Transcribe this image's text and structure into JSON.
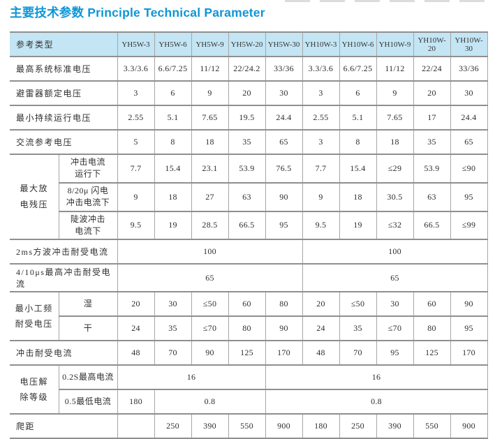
{
  "page": {
    "title": "主要技术参数 Principle Technical Parameter"
  },
  "colors": {
    "title_accent": "#0e96d6",
    "header_background": "#c3e5f4",
    "grid_line": "#8f8f8f"
  },
  "table": {
    "rows": [
      {
        "header": true,
        "cells": [
          {
            "t": "参考类型",
            "c": 2,
            "cls": "label"
          },
          {
            "t": "YH5W-3"
          },
          {
            "t": "YH5W-6"
          },
          {
            "t": "YH5W-9"
          },
          {
            "t": "YH5W-20"
          },
          {
            "t": "YH5W-30"
          },
          {
            "t": "YH10W-3"
          },
          {
            "t": "YH10W-6"
          },
          {
            "t": "YH10W-9"
          },
          {
            "t": "YH10W-20"
          },
          {
            "t": "YH10W-30"
          }
        ]
      },
      {
        "cells": [
          {
            "t": "最高系统标准电压",
            "c": 2,
            "cls": "label"
          },
          {
            "t": "3.3/3.6"
          },
          {
            "t": "6.6/7.25"
          },
          {
            "t": "11/12"
          },
          {
            "t": "22/24.2"
          },
          {
            "t": "33/36"
          },
          {
            "t": "3.3/3.6"
          },
          {
            "t": "6.6/7.25"
          },
          {
            "t": "11/12"
          },
          {
            "t": "22/24"
          },
          {
            "t": "33/36"
          }
        ]
      },
      {
        "cells": [
          {
            "t": "避雷器额定电压",
            "c": 2,
            "cls": "label"
          },
          {
            "t": "3"
          },
          {
            "t": "6"
          },
          {
            "t": "9"
          },
          {
            "t": "20"
          },
          {
            "t": "30"
          },
          {
            "t": "3"
          },
          {
            "t": "6"
          },
          {
            "t": "9"
          },
          {
            "t": "20"
          },
          {
            "t": "30"
          }
        ]
      },
      {
        "cells": [
          {
            "t": "最小持续运行电压",
            "c": 2,
            "cls": "label"
          },
          {
            "t": "2.55"
          },
          {
            "t": "5.1"
          },
          {
            "t": "7.65"
          },
          {
            "t": "19.5"
          },
          {
            "t": "24.4"
          },
          {
            "t": "2.55"
          },
          {
            "t": "5.1"
          },
          {
            "t": "7.65"
          },
          {
            "t": "17"
          },
          {
            "t": "24.4"
          }
        ]
      },
      {
        "cells": [
          {
            "t": "交流参考电压",
            "c": 2,
            "cls": "label"
          },
          {
            "t": "5"
          },
          {
            "t": "8"
          },
          {
            "t": "18"
          },
          {
            "t": "35"
          },
          {
            "t": "65"
          },
          {
            "t": "3"
          },
          {
            "t": "8"
          },
          {
            "t": "18"
          },
          {
            "t": "35"
          },
          {
            "t": "65"
          }
        ]
      },
      {
        "cells": [
          {
            "t": "最大放\n电残压",
            "r": 3,
            "cls": "group"
          },
          {
            "t": "冲击电流\n运行下",
            "cls": "sub"
          },
          {
            "t": "7.7"
          },
          {
            "t": "15.4"
          },
          {
            "t": "23.1"
          },
          {
            "t": "53.9"
          },
          {
            "t": "76.5"
          },
          {
            "t": "7.7"
          },
          {
            "t": "15.4"
          },
          {
            "t": "≤29"
          },
          {
            "t": "53.9"
          },
          {
            "t": "≤90"
          }
        ]
      },
      {
        "cells": [
          {
            "t": "8/20μ 闪电\n冲击电流下",
            "cls": "sub"
          },
          {
            "t": "9"
          },
          {
            "t": "18"
          },
          {
            "t": "27"
          },
          {
            "t": "63"
          },
          {
            "t": "90"
          },
          {
            "t": "9"
          },
          {
            "t": "18"
          },
          {
            "t": "30.5"
          },
          {
            "t": "63"
          },
          {
            "t": "95"
          }
        ]
      },
      {
        "cells": [
          {
            "t": "陡波冲击\n电流下",
            "cls": "sub"
          },
          {
            "t": "9.5"
          },
          {
            "t": "19"
          },
          {
            "t": "28.5"
          },
          {
            "t": "66.5"
          },
          {
            "t": "95"
          },
          {
            "t": "9.5"
          },
          {
            "t": "19"
          },
          {
            "t": "≤32"
          },
          {
            "t": "66.5"
          },
          {
            "t": "≤99"
          }
        ]
      },
      {
        "cells": [
          {
            "t": "2ms方波冲击耐受电流",
            "c": 2,
            "cls": "label"
          },
          {
            "t": "100",
            "c": 5
          },
          {
            "t": "100",
            "c": 5
          }
        ]
      },
      {
        "cells": [
          {
            "t": "4/10μs最高冲击耐受电流",
            "c": 2,
            "cls": "label"
          },
          {
            "t": "65",
            "c": 5
          },
          {
            "t": "65",
            "c": 5
          }
        ]
      },
      {
        "cells": [
          {
            "t": "最小工频\n耐受电压",
            "r": 2,
            "cls": "group"
          },
          {
            "t": "湿",
            "cls": "sub"
          },
          {
            "t": "20"
          },
          {
            "t": "30"
          },
          {
            "t": "≤50"
          },
          {
            "t": "60"
          },
          {
            "t": "80"
          },
          {
            "t": "20"
          },
          {
            "t": "≤50"
          },
          {
            "t": "30"
          },
          {
            "t": "60"
          },
          {
            "t": "90"
          }
        ]
      },
      {
        "cells": [
          {
            "t": "干",
            "cls": "sub"
          },
          {
            "t": "24"
          },
          {
            "t": "35"
          },
          {
            "t": "≤70"
          },
          {
            "t": "80"
          },
          {
            "t": "90"
          },
          {
            "t": "24"
          },
          {
            "t": "35"
          },
          {
            "t": "≤70"
          },
          {
            "t": "80"
          },
          {
            "t": "95"
          }
        ]
      },
      {
        "cells": [
          {
            "t": "冲击耐受电流",
            "c": 2,
            "cls": "label"
          },
          {
            "t": "48"
          },
          {
            "t": "70"
          },
          {
            "t": "90"
          },
          {
            "t": "125"
          },
          {
            "t": "170"
          },
          {
            "t": "48"
          },
          {
            "t": "70"
          },
          {
            "t": "95"
          },
          {
            "t": "125"
          },
          {
            "t": "170"
          }
        ]
      },
      {
        "cells": [
          {
            "t": "电压解\n除等级",
            "r": 2,
            "cls": "group"
          },
          {
            "t": "0.2S最高电流",
            "cls": "sub"
          },
          {
            "t": "16",
            "c": 4
          },
          {
            "t": "16",
            "c": 6
          }
        ]
      },
      {
        "cells": [
          {
            "t": "0.5最低电流",
            "cls": "sub"
          },
          {
            "t": "180"
          },
          {
            "t": "0.8",
            "c": 3
          },
          {
            "t": "0.8",
            "c": 6
          }
        ]
      },
      {
        "cells": [
          {
            "t": "爬距",
            "c": 2,
            "cls": "label"
          },
          {
            "t": ""
          },
          {
            "t": "250"
          },
          {
            "t": "390"
          },
          {
            "t": "550"
          },
          {
            "t": "900"
          },
          {
            "t": "180"
          },
          {
            "t": "250"
          },
          {
            "t": "390"
          },
          {
            "t": "550"
          },
          {
            "t": "900"
          }
        ]
      }
    ]
  }
}
